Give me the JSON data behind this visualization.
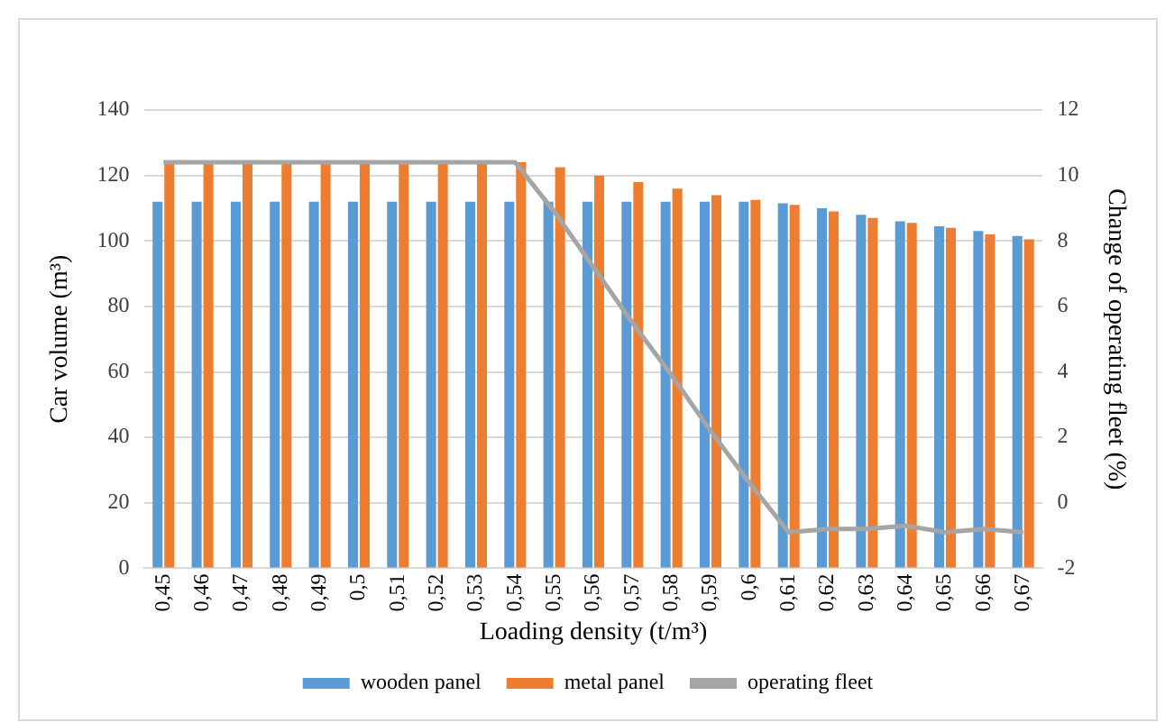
{
  "chart_data": {
    "type": "bar",
    "xlabel": "Loading density (t/m³)",
    "ylabel": "Car volume (m³)",
    "y2label": "Change of operating fleet (%)",
    "categories": [
      "0,45",
      "0,46",
      "0,47",
      "0,48",
      "0,49",
      "0,5",
      "0,51",
      "0,52",
      "0,53",
      "0,54",
      "0,55",
      "0,56",
      "0,57",
      "0,58",
      "0,59",
      "0,6",
      "0,61",
      "0,62",
      "0,63",
      "0,64",
      "0,65",
      "0,66",
      "0,67"
    ],
    "series": [
      {
        "name": "wooden panel",
        "color": "#5b9bd5",
        "values": [
          112,
          112,
          112,
          112,
          112,
          112,
          112,
          112,
          112,
          112,
          112,
          112,
          112,
          112,
          112,
          112,
          111.5,
          110,
          108,
          106,
          104.5,
          103,
          101.5
        ]
      },
      {
        "name": "metal panel",
        "color": "#ed7d31",
        "values": [
          124,
          124,
          124,
          124,
          124,
          124,
          124,
          124,
          124,
          124,
          122.5,
          120,
          118,
          116,
          114,
          112.5,
          111,
          109,
          107,
          105.5,
          104,
          102,
          100.5
        ]
      },
      {
        "name": "operating fleet",
        "type": "line",
        "axis": "y2",
        "color": "#a5a5a5",
        "marker": "none",
        "values": [
          10.4,
          10.4,
          10.4,
          10.4,
          10.4,
          10.4,
          10.4,
          10.4,
          10.4,
          10.4,
          8.9,
          7.2,
          5.5,
          3.9,
          2.2,
          0.6,
          -0.9,
          -0.8,
          -0.8,
          -0.7,
          -0.9,
          -0.8,
          -0.9
        ]
      }
    ],
    "ylim": [
      0,
      140
    ],
    "yticks": [
      0,
      20,
      40,
      60,
      80,
      100,
      120,
      140
    ],
    "y2lim": [
      -2,
      12
    ],
    "y2ticks": [
      -2,
      0,
      2,
      4,
      6,
      8,
      10,
      12
    ],
    "grid": "y",
    "legend": "bottom"
  }
}
